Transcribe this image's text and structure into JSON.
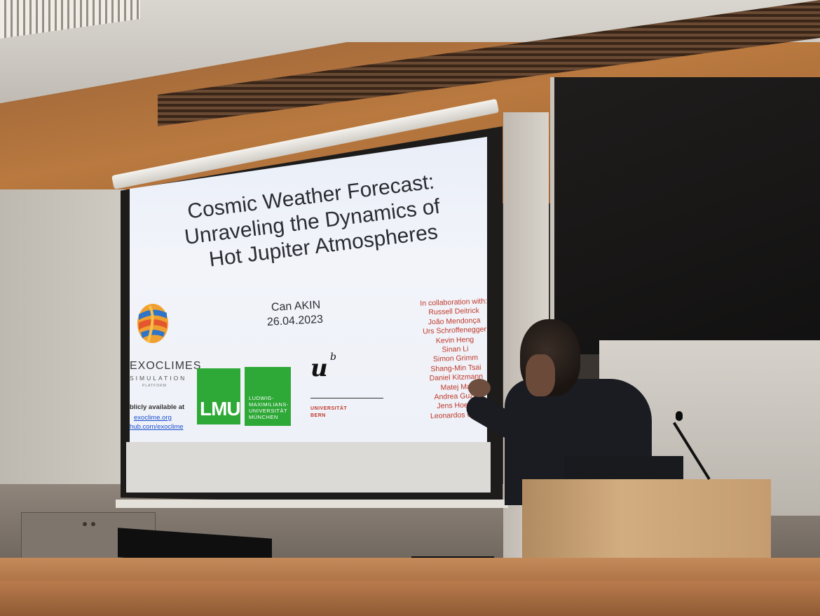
{
  "slide": {
    "title_lines": [
      "Cosmic Weather Forecast:",
      "Unraveling the Dynamics of",
      "Hot Jupiter Atmospheres"
    ],
    "presenter": "Can AKIN",
    "date": "26.04.2023",
    "collaboration": {
      "heading": "In collaboration with:",
      "names": [
        "Russell Deitrick",
        "João Mendonça",
        "Urs Schroffenegger",
        "Kevin Heng",
        "Sinan Li",
        "Simon Grimm",
        "Shang-Min Tsai",
        "Daniel Kitzmann",
        "Matej Mal",
        "Andrea Guzm",
        "Jens Hoeijm",
        "Leonardos Gkou"
      ]
    },
    "exoclimes": {
      "wordmark": "EXOCLIMES",
      "subtitle": "SIMULATION",
      "platform": "PLATFORM",
      "availability": "blicly available at",
      "link_site": "exoclime.org",
      "link_github": "hub.com/exoclime"
    },
    "lmu": {
      "letters": "LMU",
      "lines": [
        "LUDWIG-",
        "MAXIMILIANS-",
        "UNIVERSITÄT",
        "MÜNCHEN"
      ]
    },
    "unibe": {
      "mark": "u",
      "super": "b",
      "line1": "UNIVERSITÄT",
      "line2": "BERN"
    }
  },
  "colors": {
    "slide_background": "#eef1f7",
    "collaborator_text": "#c0392b",
    "lmu_green": "#2ea836",
    "link_blue": "#1b4fd1"
  }
}
